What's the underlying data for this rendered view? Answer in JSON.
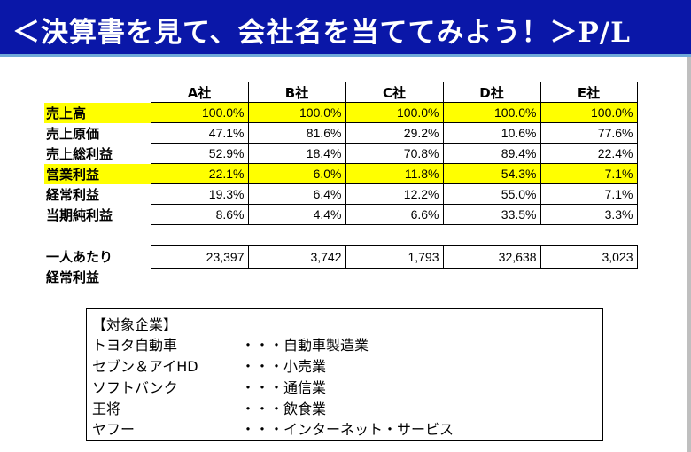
{
  "title": "＜決算書を見て、会社名を当ててみよう！＞P/L",
  "columns": [
    "A社",
    "B社",
    "C社",
    "D社",
    "E社"
  ],
  "rows": [
    {
      "label": "売上高",
      "highlight": true,
      "values": [
        "100.0%",
        "100.0%",
        "100.0%",
        "100.0%",
        "100.0%"
      ]
    },
    {
      "label": "売上原価",
      "highlight": false,
      "values": [
        "47.1%",
        "81.6%",
        "29.2%",
        "10.6%",
        "77.6%"
      ]
    },
    {
      "label": "売上総利益",
      "highlight": false,
      "values": [
        "52.9%",
        "18.4%",
        "70.8%",
        "89.4%",
        "22.4%"
      ]
    },
    {
      "label": "営業利益",
      "highlight": true,
      "values": [
        "22.1%",
        "6.0%",
        "11.8%",
        "54.3%",
        "7.1%"
      ]
    },
    {
      "label": "経常利益",
      "highlight": false,
      "values": [
        "19.3%",
        "6.4%",
        "12.2%",
        "55.0%",
        "7.1%"
      ]
    },
    {
      "label": "当期純利益",
      "highlight": false,
      "values": [
        "8.6%",
        "4.4%",
        "6.6%",
        "33.5%",
        "3.3%"
      ]
    }
  ],
  "per_capita": {
    "label_line1": "一人あたり",
    "label_line2": "経常利益",
    "values": [
      "23,397",
      "3,742",
      "1,793",
      "32,638",
      "3,023"
    ]
  },
  "companies": {
    "heading": "【対象企業】",
    "items": [
      {
        "name": "トヨタ自動車",
        "industry": "・・・自動車製造業"
      },
      {
        "name": "セブン＆アイHD",
        "industry": "・・・小売業"
      },
      {
        "name": "ソフトバンク",
        "industry": "・・・通信業"
      },
      {
        "name": "王将",
        "industry": "・・・飲食業"
      },
      {
        "name": "ヤフー",
        "industry": "・・・インターネット・サービス"
      }
    ]
  },
  "colors": {
    "title_bg": "#0a17a8",
    "highlight": "#ffff00"
  }
}
